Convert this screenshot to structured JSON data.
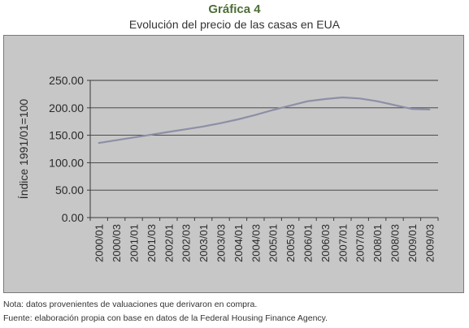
{
  "header": {
    "title": "Gráfica 4",
    "subtitle": "Evolución del precio de las casas en EUA"
  },
  "footer": {
    "note": "Nota: datos provenientes de valuaciones que derivaron en compra.",
    "source": "Fuente: elaboración propia con base en datos de la Federal Housing Finance Agency."
  },
  "colors": {
    "plot_background": "#c7c7c7",
    "line": "#8c8fa6",
    "title": "#4e6e38"
  },
  "chart_data": {
    "type": "line",
    "title": "Gráfica 4",
    "subtitle": "Evolución del precio de las casas en EUA",
    "xlabel": "",
    "ylabel": "Índice 1991/01=100",
    "ylim": [
      0,
      250
    ],
    "yticks": [
      "0.00",
      "50.00",
      "100.00",
      "150.00",
      "200.00",
      "250.00"
    ],
    "ytick_values": [
      0,
      50,
      100,
      150,
      200,
      250
    ],
    "grid": "horizontal",
    "legend": "none",
    "categories": [
      "2000/01",
      "2000/03",
      "2001/01",
      "2001/03",
      "2002/01",
      "2002/03",
      "2003/01",
      "2003/03",
      "2004/01",
      "2004/03",
      "2005/01",
      "2005/03",
      "2006/01",
      "2006/03",
      "2007/01",
      "2007/03",
      "2008/01",
      "2008/03",
      "2009/01",
      "2009/03"
    ],
    "series": [
      {
        "values": [
          136,
          141,
          146,
          151,
          156,
          161,
          166,
          172,
          179,
          187,
          196,
          204,
          212,
          216,
          219,
          217,
          212,
          205,
          198,
          197
        ]
      }
    ]
  }
}
